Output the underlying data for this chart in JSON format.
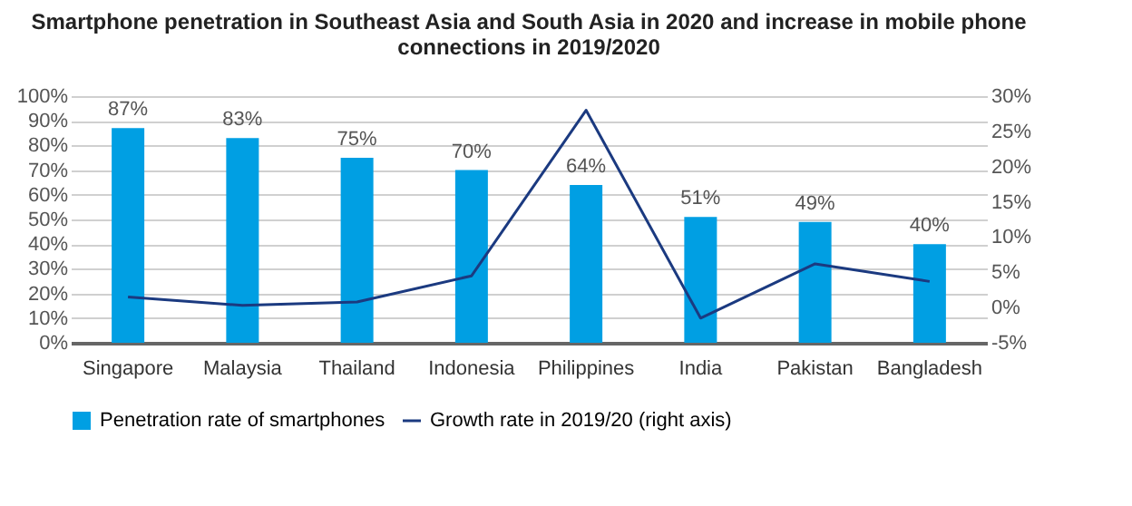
{
  "chart_data": {
    "type": "bar",
    "title": [
      "Smartphone penetration in Southeast Asia and South Asia in 2020 and increase in mobile phone",
      "connections in 2019/2020"
    ],
    "categories": [
      "Singapore",
      "Malaysia",
      "Thailand",
      "Indonesia",
      "Philippines",
      "India",
      "Pakistan",
      "Bangladesh"
    ],
    "series": [
      {
        "name": "Penetration rate of smartphones",
        "color": "#009fe3",
        "values": [
          87,
          83,
          75,
          70,
          64,
          51,
          49,
          40
        ],
        "value_labels": [
          "87%",
          "83%",
          "75%",
          "70%",
          "64%",
          "51%",
          "49%",
          "40%"
        ]
      },
      {
        "name": "Growth rate in 2019/20 (right axis)",
        "type": "line",
        "axis": "y2",
        "color": "#1b3a80",
        "values": [
          1.5,
          0.3,
          0.8,
          4.5,
          28,
          -1.5,
          6.2,
          3.7
        ]
      }
    ],
    "ylim": [
      0,
      100
    ],
    "yticks": [
      {
        "value": 0,
        "label": "0%"
      },
      {
        "value": 10,
        "label": "10%"
      },
      {
        "value": 20,
        "label": "20%"
      },
      {
        "value": 30,
        "label": "30%"
      },
      {
        "value": 40,
        "label": "40%"
      },
      {
        "value": 50,
        "label": "50%"
      },
      {
        "value": 60,
        "label": "60%"
      },
      {
        "value": 70,
        "label": "70%"
      },
      {
        "value": 80,
        "label": "80%"
      },
      {
        "value": 90,
        "label": "90%"
      },
      {
        "value": 100,
        "label": "100%"
      }
    ],
    "y2lim": [
      -5,
      30
    ],
    "y2ticks": [
      {
        "value": -5,
        "label": "-5%"
      },
      {
        "value": 0,
        "label": "0%"
      },
      {
        "value": 5,
        "label": "5%"
      },
      {
        "value": 10,
        "label": "10%"
      },
      {
        "value": 15,
        "label": "15%"
      },
      {
        "value": 20,
        "label": "20%"
      },
      {
        "value": 25,
        "label": "25%"
      },
      {
        "value": 30,
        "label": "30%"
      }
    ],
    "grid": "y",
    "legend": "bottom",
    "marker": "none",
    "line_style": "solid"
  }
}
